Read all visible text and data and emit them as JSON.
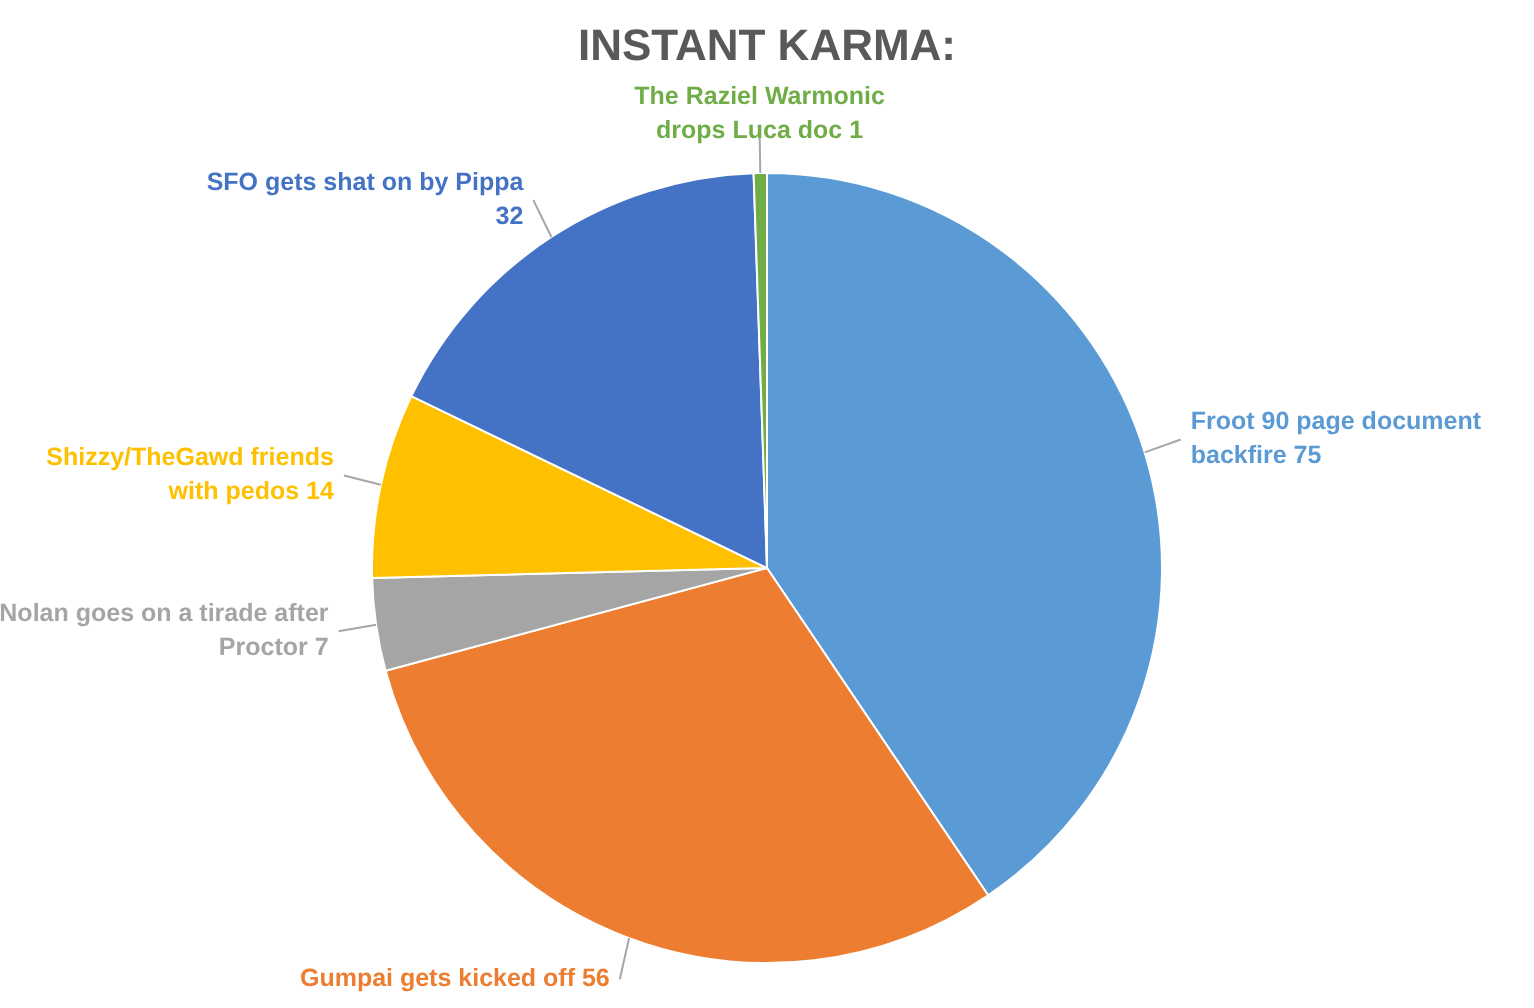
{
  "chart_data": {
    "type": "pie",
    "title": "INSTANT KARMA:",
    "categories": [
      "Froot 90 page document backfire",
      "Gumpai gets kicked off",
      "Nolan goes on a tirade after Proctor",
      "Shizzy/TheGawd friends with pedos",
      "SFO gets shat on by Pippa",
      "The Raziel Warmonic drops Luca doc"
    ],
    "values": [
      75,
      56,
      7,
      14,
      32,
      1
    ],
    "colors": [
      "#5b9bd5",
      "#ed7d31",
      "#a5a5a5",
      "#ffc000",
      "#4472c4",
      "#70ad47"
    ],
    "data_labels": true,
    "legend": false
  }
}
